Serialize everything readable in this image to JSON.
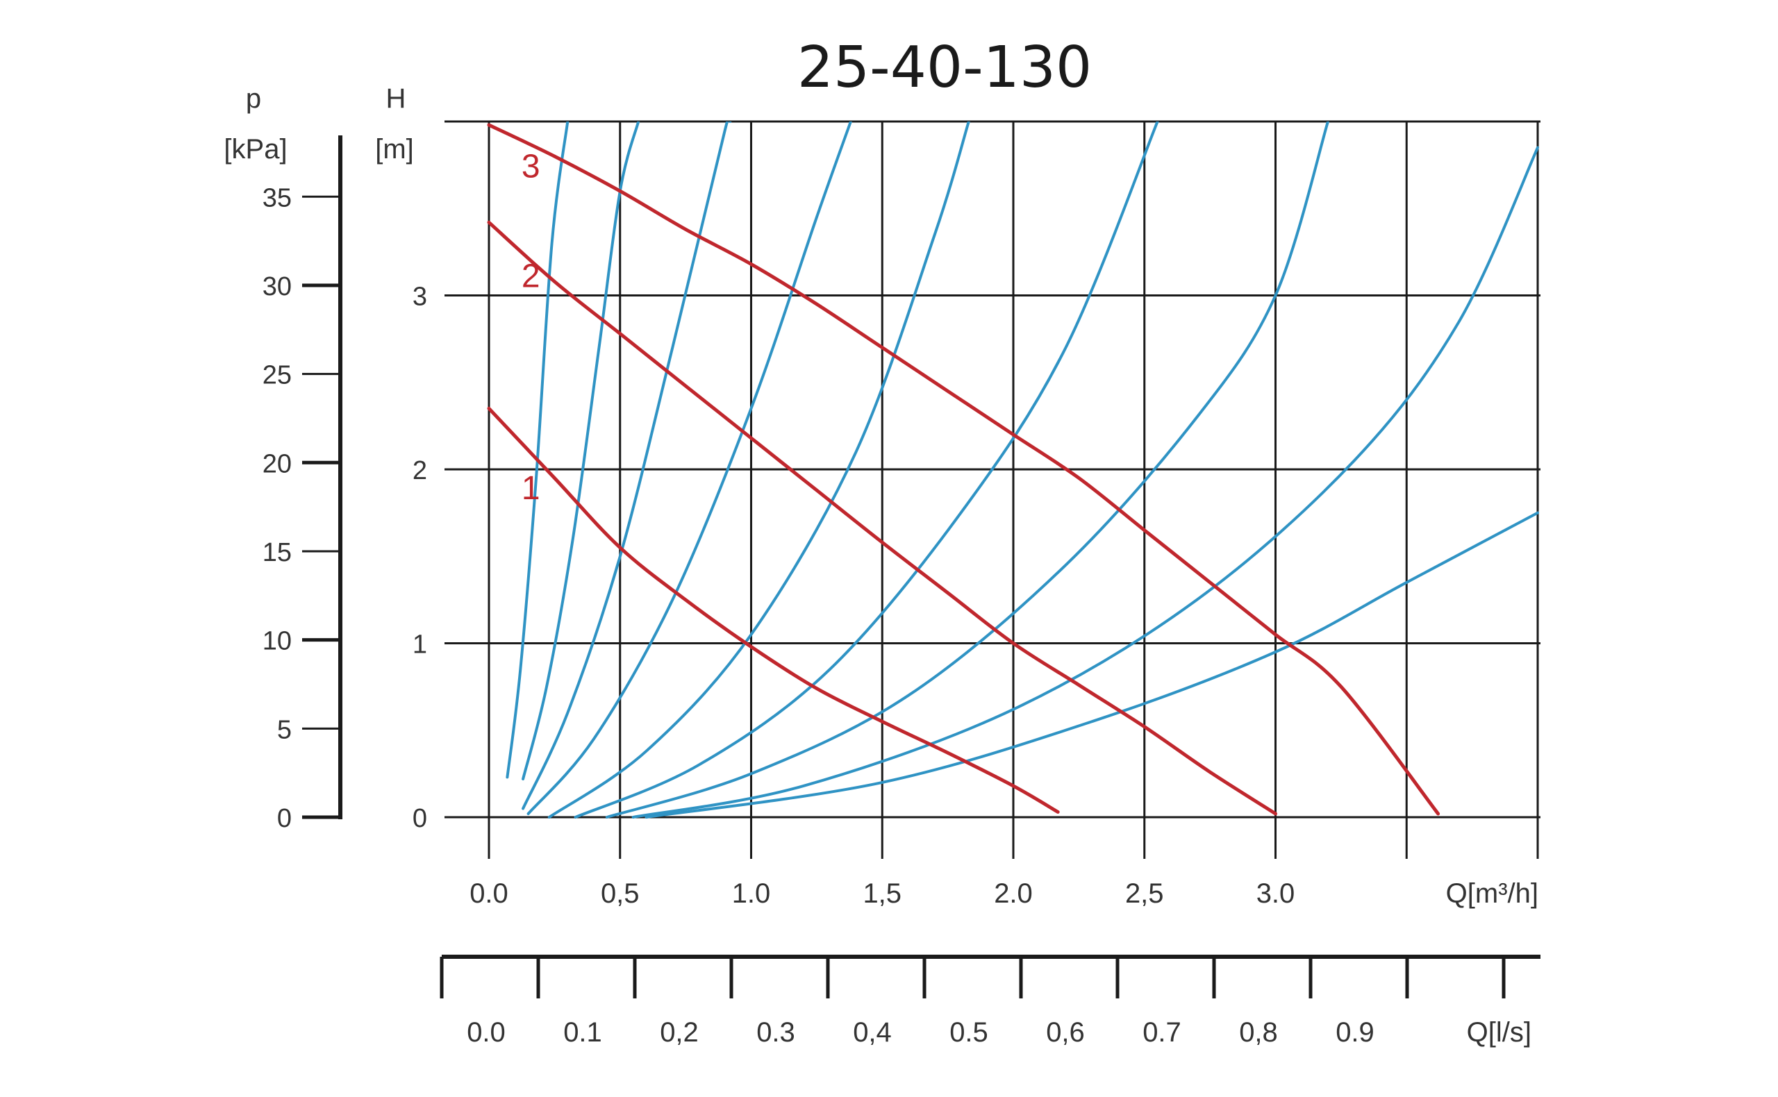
{
  "chart_data": {
    "type": "line",
    "title": "25-40-130",
    "x_axis": {
      "label": "Q[m³/h]",
      "range": [
        0,
        4
      ],
      "ticks": [
        0,
        0.5,
        1,
        1.5,
        2,
        2.5,
        3
      ],
      "tick_labels": [
        "0.0",
        "0,5",
        "1.0",
        "1,5",
        "2.0",
        "2,5",
        "3.0"
      ]
    },
    "x2_axis": {
      "label": "Q[l/s]",
      "ticks": [
        0,
        0.1,
        0.2,
        0.3,
        0.4,
        0.5,
        0.6,
        0.7,
        0.8,
        0.9
      ],
      "tick_labels": [
        "0.0",
        "0.1",
        "0,2",
        "0.3",
        "0,4",
        "0.5",
        "0,6",
        "0.7",
        "0,8",
        "0.9"
      ]
    },
    "y_axis": {
      "name": "H",
      "unit": "[m]",
      "range": [
        0,
        4
      ],
      "ticks": [
        0,
        1,
        2,
        3
      ],
      "tick_labels": [
        "0",
        "1",
        "2",
        "3"
      ]
    },
    "y2_axis": {
      "name": "p",
      "unit": "[kPa]",
      "ticks": [
        0,
        5,
        10,
        15,
        20,
        25,
        30,
        35
      ],
      "tick_labels": [
        "0",
        "5",
        "10",
        "15",
        "20",
        "25",
        "30",
        "35"
      ]
    },
    "grid": true,
    "series": [
      {
        "name": "1",
        "color": "#c0272d",
        "label_at": [
          0.08,
          1.9
        ],
        "x": [
          0.0,
          0.25,
          0.5,
          0.75,
          1.0,
          1.25,
          1.5,
          1.75,
          2.0,
          2.17
        ],
        "y": [
          2.35,
          1.95,
          1.55,
          1.25,
          0.98,
          0.74,
          0.55,
          0.37,
          0.18,
          0.03
        ]
      },
      {
        "name": "2",
        "color": "#c0272d",
        "label_at": [
          0.08,
          3.12
        ],
        "x": [
          0.0,
          0.25,
          0.5,
          0.75,
          1.0,
          1.25,
          1.5,
          1.75,
          2.0,
          2.25,
          2.5,
          2.75,
          3.0
        ],
        "y": [
          3.42,
          3.08,
          2.78,
          2.48,
          2.18,
          1.88,
          1.58,
          1.29,
          1.0,
          0.76,
          0.52,
          0.26,
          0.02
        ]
      },
      {
        "name": "3",
        "color": "#c0272d",
        "label_at": [
          0.08,
          3.75
        ],
        "x": [
          0.0,
          0.25,
          0.5,
          0.75,
          1.0,
          1.25,
          1.5,
          1.75,
          2.0,
          2.25,
          2.5,
          2.75,
          3.0,
          3.25,
          3.62
        ],
        "y": [
          3.98,
          3.8,
          3.6,
          3.38,
          3.18,
          2.95,
          2.7,
          2.45,
          2.2,
          1.95,
          1.65,
          1.35,
          1.05,
          0.75,
          0.02
        ]
      }
    ],
    "system_curves": [
      {
        "color": "#2f93c4",
        "x": [
          0.07,
          0.12,
          0.18,
          0.24,
          0.3
        ],
        "y": [
          0.23,
          0.85,
          1.95,
          3.3,
          4.0
        ]
      },
      {
        "color": "#2f93c4",
        "x": [
          0.13,
          0.22,
          0.32,
          0.42,
          0.5,
          0.57
        ],
        "y": [
          0.22,
          0.75,
          1.6,
          2.7,
          3.6,
          4.0
        ]
      },
      {
        "color": "#2f93c4",
        "x": [
          0.13,
          0.3,
          0.5,
          0.7,
          0.9,
          0.92
        ],
        "y": [
          0.05,
          0.6,
          1.5,
          2.7,
          3.95,
          4.0
        ]
      },
      {
        "color": "#2f93c4",
        "x": [
          0.15,
          0.4,
          0.7,
          1.0,
          1.25,
          1.38
        ],
        "y": [
          0.02,
          0.45,
          1.25,
          2.35,
          3.45,
          4.0
        ]
      },
      {
        "color": "#2f93c4",
        "x": [
          0.23,
          0.6,
          1.0,
          1.4,
          1.7,
          1.83
        ],
        "y": [
          0.0,
          0.38,
          1.05,
          2.1,
          3.35,
          4.0
        ]
      },
      {
        "color": "#2f93c4",
        "x": [
          0.33,
          0.8,
          1.3,
          1.8,
          2.2,
          2.55
        ],
        "y": [
          0.0,
          0.3,
          0.85,
          1.75,
          2.7,
          4.0
        ]
      },
      {
        "color": "#2f93c4",
        "x": [
          0.45,
          1.0,
          1.6,
          2.2,
          2.7,
          3.0,
          3.2
        ],
        "y": [
          0.0,
          0.25,
          0.7,
          1.45,
          2.3,
          3.0,
          4.0
        ]
      },
      {
        "color": "#2f93c4",
        "x": [
          0.55,
          1.2,
          2.0,
          2.7,
          3.3,
          3.7,
          4.0
        ],
        "y": [
          0.0,
          0.18,
          0.62,
          1.25,
          2.05,
          2.85,
          3.85
        ]
      },
      {
        "color": "#2f93c4",
        "x": [
          0.6,
          1.5,
          2.3,
          3.0,
          3.5,
          4.0
        ],
        "y": [
          0.0,
          0.2,
          0.55,
          0.95,
          1.35,
          1.75
        ]
      }
    ]
  }
}
